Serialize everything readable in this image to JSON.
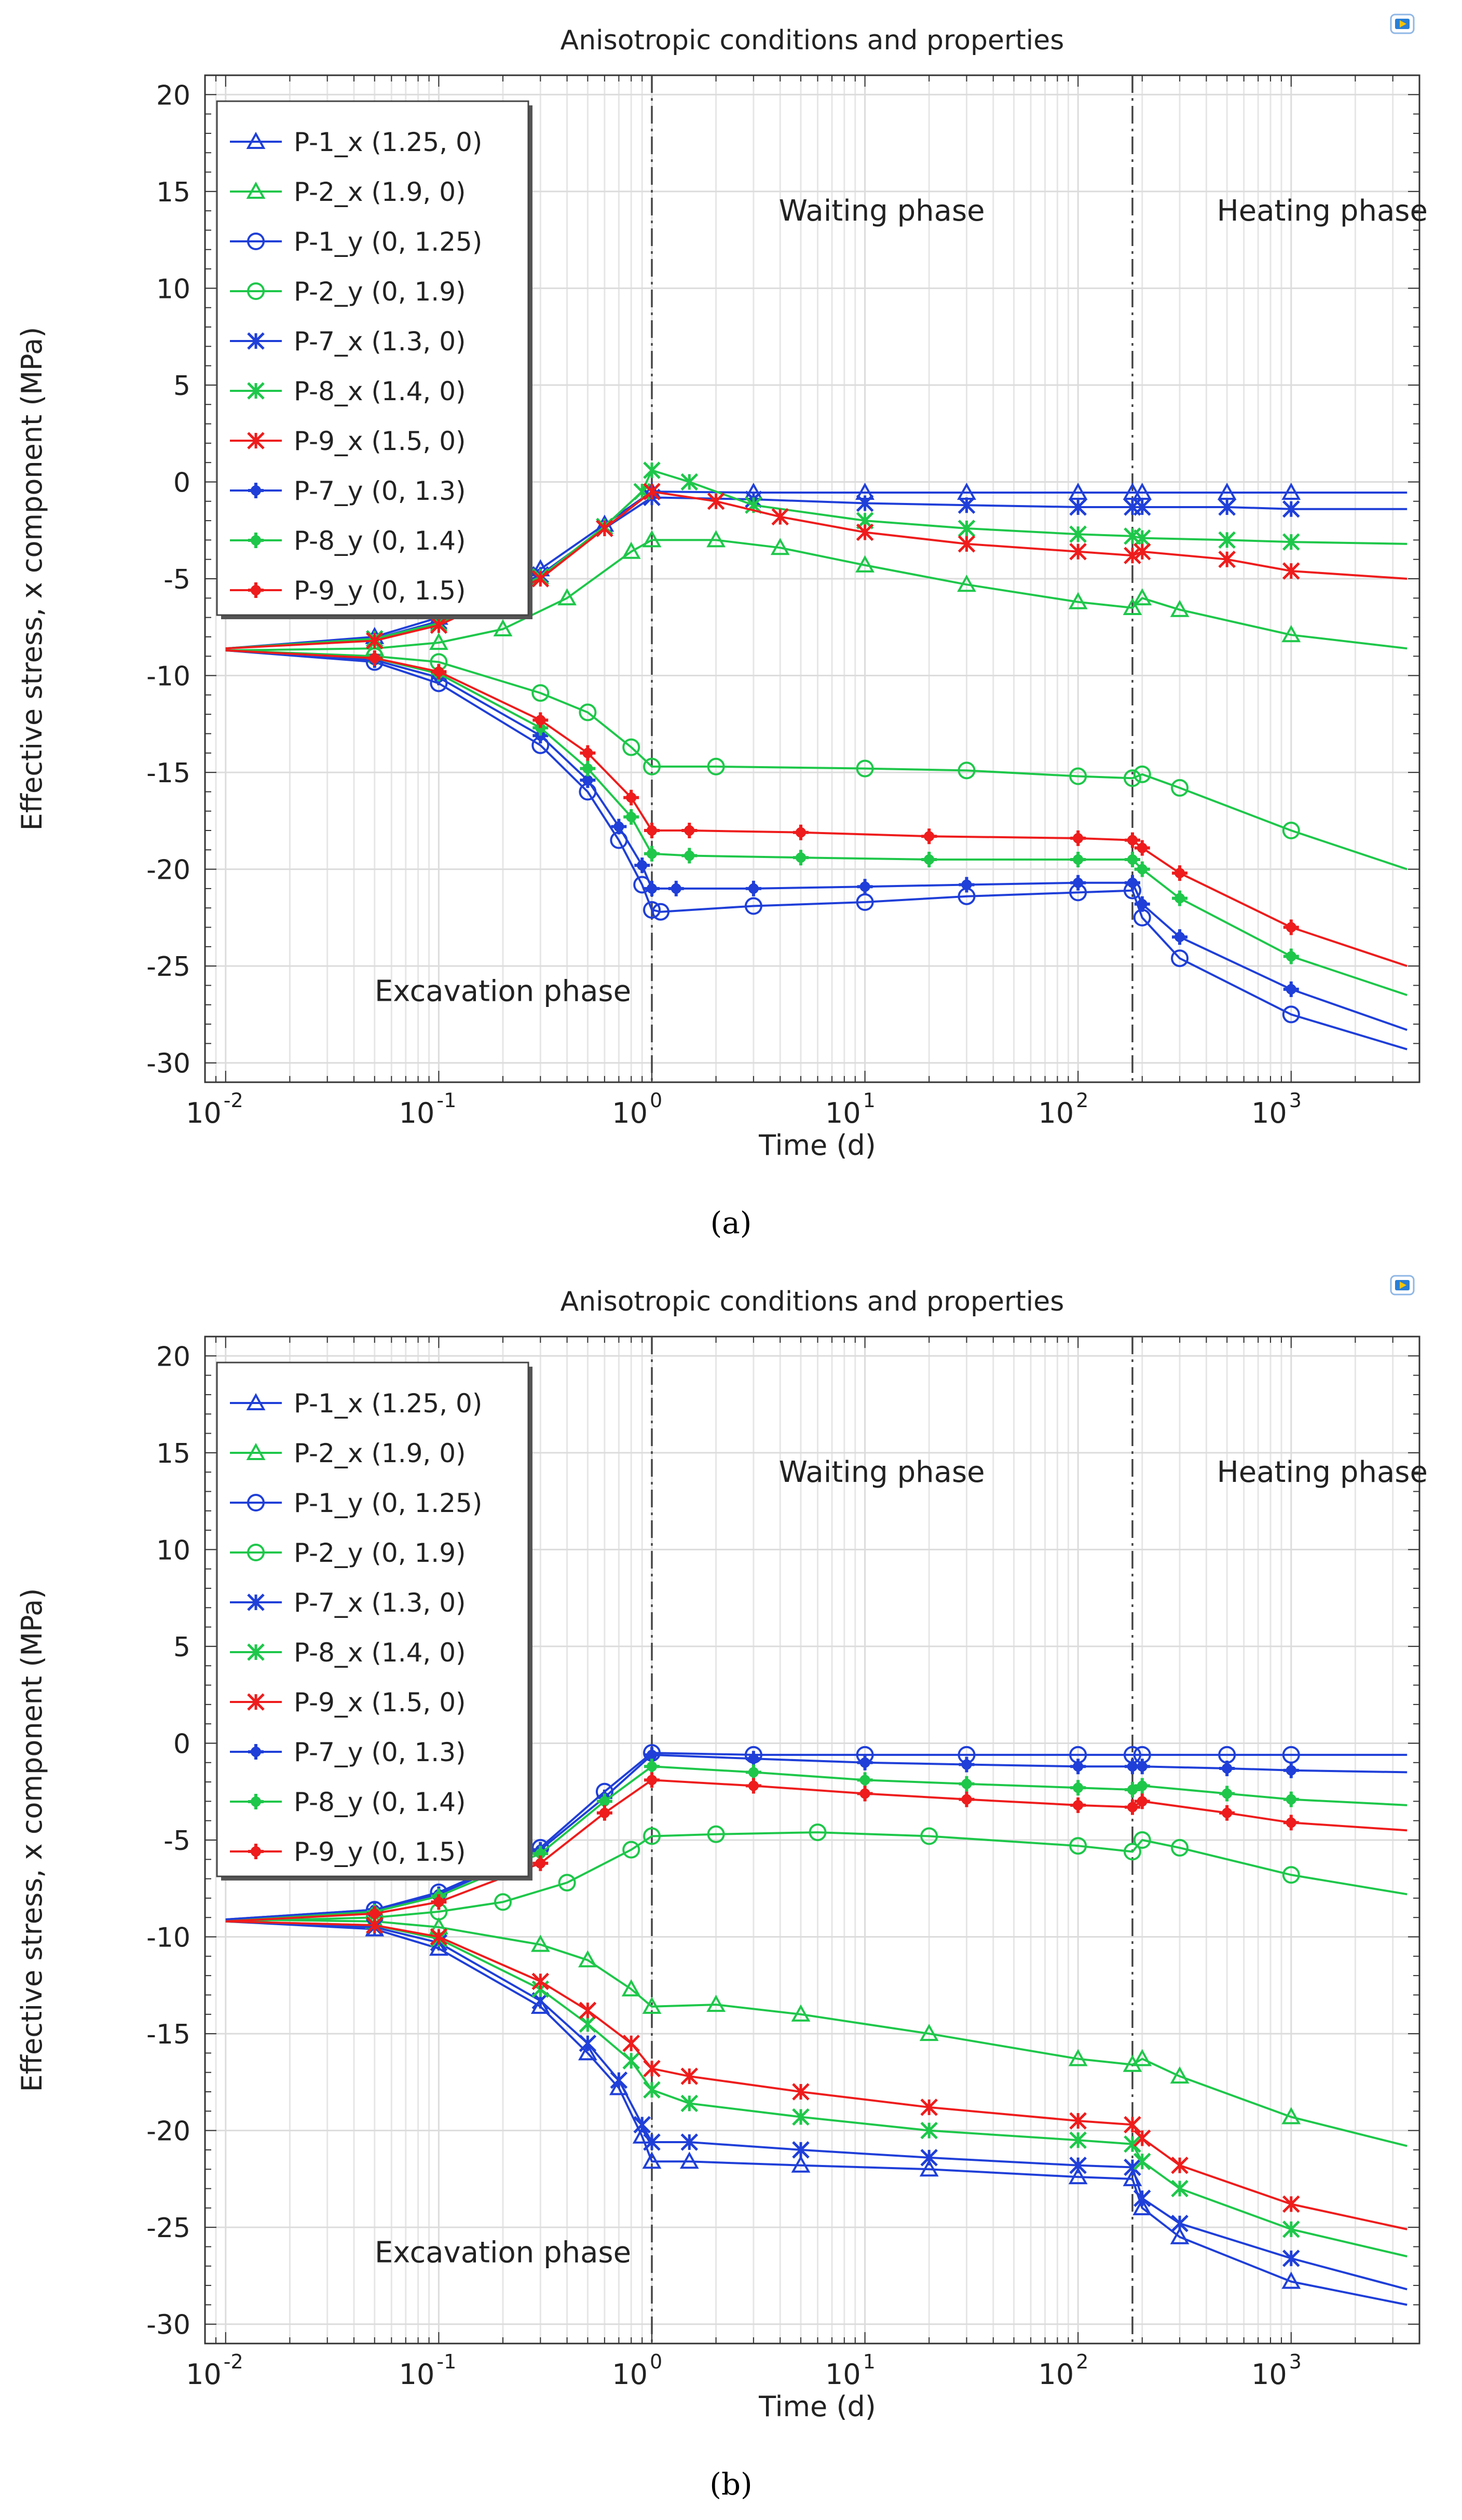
{
  "colors": {
    "blue": "#1f3fd8",
    "green": "#1ec74a",
    "red": "#ee1c1c",
    "grid": "#e6e6e6",
    "phase_line": "#444444",
    "icon": "#2a7fd4"
  },
  "chart_data": [
    {
      "id": "a",
      "type": "line",
      "panel_label": "(a)",
      "title": "Anisotropic conditions and properties",
      "xlabel": "Time (d)",
      "ylabel": "Effective stress, x component (MPa)",
      "xscale": "log",
      "xlim": [
        0.008,
        4000
      ],
      "ylim": [
        -31,
        21
      ],
      "yticks": [
        20,
        15,
        10,
        5,
        0,
        -5,
        -10,
        -15,
        -20,
        -25,
        -30
      ],
      "xticks": [
        {
          "value": 0.01,
          "base": "10",
          "exp": "-2"
        },
        {
          "value": 0.1,
          "base": "10",
          "exp": "-1"
        },
        {
          "value": 1,
          "base": "10",
          "exp": "0"
        },
        {
          "value": 10,
          "base": "10",
          "exp": "1"
        },
        {
          "value": 100,
          "base": "10",
          "exp": "2"
        },
        {
          "value": 1000,
          "base": "10",
          "exp": "3"
        }
      ],
      "phase_lines": [
        1,
        180
      ],
      "annotations": [
        {
          "text": "Waiting phase",
          "x": 12,
          "y": 13.5
        },
        {
          "text": "Heating phase",
          "x": 1400,
          "y": 13.5
        },
        {
          "text": "Excavation phase",
          "x": 0.2,
          "y": -26.8
        }
      ],
      "legend_position": "top-left",
      "series": [
        {
          "name": "P-1_x (1.25, 0)",
          "color": "blue",
          "marker": "triangle",
          "x": [
            0.01,
            0.05,
            0.1,
            0.3,
            0.6,
            1.0,
            3,
            10,
            30,
            100,
            180,
            200,
            500,
            1000,
            3500
          ],
          "y": [
            -8.6,
            -8.0,
            -7.0,
            -4.5,
            -2.2,
            -0.5,
            -0.55,
            -0.55,
            -0.55,
            -0.55,
            -0.55,
            -0.55,
            -0.55,
            -0.55,
            -0.55
          ]
        },
        {
          "name": "P-2_x (1.9, 0)",
          "color": "green",
          "marker": "triangle",
          "x": [
            0.01,
            0.05,
            0.1,
            0.2,
            0.4,
            0.8,
            1.0,
            2,
            4,
            10,
            30,
            100,
            180,
            200,
            300,
            1000,
            3500
          ],
          "y": [
            -8.7,
            -8.6,
            -8.3,
            -7.6,
            -6.0,
            -3.6,
            -3.0,
            -3.0,
            -3.4,
            -4.3,
            -5.3,
            -6.2,
            -6.5,
            -6.0,
            -6.6,
            -7.9,
            -8.6
          ]
        },
        {
          "name": "P-1_y (0, 1.25)",
          "color": "blue",
          "marker": "circle",
          "x": [
            0.01,
            0.05,
            0.1,
            0.3,
            0.5,
            0.7,
            0.9,
            1.0,
            1.1,
            3,
            10,
            30,
            100,
            180,
            200,
            300,
            1000,
            3500
          ],
          "y": [
            -8.7,
            -9.3,
            -10.4,
            -13.6,
            -16.0,
            -18.5,
            -20.8,
            -22.1,
            -22.2,
            -21.9,
            -21.7,
            -21.4,
            -21.2,
            -21.1,
            -22.5,
            -24.6,
            -27.5,
            -29.3
          ]
        },
        {
          "name": "P-2_y (0, 1.9)",
          "color": "green",
          "marker": "circle",
          "x": [
            0.01,
            0.05,
            0.1,
            0.3,
            0.5,
            0.8,
            1.0,
            2,
            10,
            30,
            100,
            180,
            200,
            300,
            1000,
            3500
          ],
          "y": [
            -8.7,
            -9.0,
            -9.3,
            -10.9,
            -11.9,
            -13.7,
            -14.7,
            -14.7,
            -14.8,
            -14.9,
            -15.2,
            -15.3,
            -15.1,
            -15.8,
            -18.0,
            -20.0
          ]
        },
        {
          "name": "P-7_x (1.3, 0)",
          "color": "blue",
          "marker": "x",
          "x": [
            0.01,
            0.05,
            0.1,
            0.3,
            0.6,
            1.0,
            3,
            10,
            30,
            100,
            180,
            200,
            500,
            1000,
            3500
          ],
          "y": [
            -8.6,
            -8.1,
            -7.2,
            -4.8,
            -2.4,
            -0.8,
            -0.9,
            -1.1,
            -1.2,
            -1.3,
            -1.3,
            -1.3,
            -1.3,
            -1.4,
            -1.4
          ]
        },
        {
          "name": "P-8_x (1.4, 0)",
          "color": "green",
          "marker": "x",
          "x": [
            0.01,
            0.05,
            0.1,
            0.3,
            0.6,
            0.9,
            1.0,
            1.5,
            3,
            10,
            30,
            100,
            180,
            200,
            500,
            1000,
            3500
          ],
          "y": [
            -8.6,
            -8.1,
            -7.3,
            -4.9,
            -2.3,
            -0.5,
            0.6,
            0.0,
            -1.2,
            -2.0,
            -2.4,
            -2.7,
            -2.8,
            -2.9,
            -3.0,
            -3.1,
            -3.2
          ]
        },
        {
          "name": "P-9_x (1.5, 0)",
          "color": "red",
          "marker": "x",
          "x": [
            0.01,
            0.05,
            0.1,
            0.3,
            0.6,
            1.0,
            2,
            4,
            10,
            30,
            100,
            180,
            200,
            500,
            1000,
            3500
          ],
          "y": [
            -8.6,
            -8.2,
            -7.4,
            -5.0,
            -2.4,
            -0.5,
            -1.0,
            -1.8,
            -2.6,
            -3.2,
            -3.6,
            -3.8,
            -3.6,
            -4.0,
            -4.6,
            -5.0
          ]
        },
        {
          "name": "P-7_y (0, 1.3)",
          "color": "blue",
          "marker": "plus",
          "x": [
            0.01,
            0.05,
            0.1,
            0.3,
            0.5,
            0.7,
            0.9,
            1.0,
            1.3,
            3,
            10,
            30,
            100,
            180,
            200,
            300,
            1000,
            3500
          ],
          "y": [
            -8.7,
            -9.2,
            -10.1,
            -13.1,
            -15.4,
            -17.8,
            -19.8,
            -21.0,
            -21.0,
            -21.0,
            -20.9,
            -20.8,
            -20.7,
            -20.7,
            -21.8,
            -23.5,
            -26.2,
            -28.3
          ]
        },
        {
          "name": "P-8_y (0, 1.4)",
          "color": "green",
          "marker": "plus",
          "x": [
            0.01,
            0.05,
            0.1,
            0.3,
            0.5,
            0.8,
            1.0,
            1.5,
            5,
            20,
            100,
            180,
            200,
            300,
            1000,
            3500
          ],
          "y": [
            -8.7,
            -9.1,
            -9.9,
            -12.7,
            -14.8,
            -17.3,
            -19.2,
            -19.3,
            -19.4,
            -19.5,
            -19.5,
            -19.5,
            -20.0,
            -21.5,
            -24.5,
            -26.5
          ]
        },
        {
          "name": "P-9_y (0, 1.5)",
          "color": "red",
          "marker": "plus",
          "x": [
            0.01,
            0.05,
            0.1,
            0.3,
            0.5,
            0.8,
            1.0,
            1.5,
            5,
            20,
            100,
            180,
            200,
            300,
            1000,
            3500
          ],
          "y": [
            -8.7,
            -9.1,
            -9.8,
            -12.3,
            -14.0,
            -16.3,
            -18.0,
            -18.0,
            -18.1,
            -18.3,
            -18.4,
            -18.5,
            -18.9,
            -20.2,
            -23.0,
            -25.0
          ]
        }
      ]
    },
    {
      "id": "b",
      "type": "line",
      "panel_label": "(b)",
      "title": "Anisotropic conditions and properties",
      "xlabel": "Time (d)",
      "ylabel": "Effective stress, x component (MPa)",
      "xscale": "log",
      "xlim": [
        0.008,
        4000
      ],
      "ylim": [
        -31,
        21
      ],
      "yticks": [
        20,
        15,
        10,
        5,
        0,
        -5,
        -10,
        -15,
        -20,
        -25,
        -30
      ],
      "xticks": [
        {
          "value": 0.01,
          "base": "10",
          "exp": "-2"
        },
        {
          "value": 0.1,
          "base": "10",
          "exp": "-1"
        },
        {
          "value": 1,
          "base": "10",
          "exp": "0"
        },
        {
          "value": 10,
          "base": "10",
          "exp": "1"
        },
        {
          "value": 100,
          "base": "10",
          "exp": "2"
        },
        {
          "value": 1000,
          "base": "10",
          "exp": "3"
        }
      ],
      "phase_lines": [
        1,
        180
      ],
      "annotations": [
        {
          "text": "Waiting phase",
          "x": 12,
          "y": 13.5
        },
        {
          "text": "Heating phase",
          "x": 1400,
          "y": 13.5
        },
        {
          "text": "Excavation phase",
          "x": 0.2,
          "y": -26.8
        }
      ],
      "legend_position": "top-left",
      "series": [
        {
          "name": "P-1_x (1.25, 0)",
          "color": "blue",
          "marker": "triangle",
          "x": [
            0.01,
            0.05,
            0.1,
            0.3,
            0.5,
            0.7,
            0.9,
            1.0,
            1.5,
            5,
            20,
            100,
            180,
            200,
            300,
            1000,
            3500
          ],
          "y": [
            -9.2,
            -9.6,
            -10.6,
            -13.6,
            -16.0,
            -17.8,
            -20.3,
            -21.6,
            -21.6,
            -21.8,
            -22.0,
            -22.4,
            -22.5,
            -24.0,
            -25.5,
            -27.8,
            -29.0
          ]
        },
        {
          "name": "P-2_x (1.9, 0)",
          "color": "green",
          "marker": "triangle",
          "x": [
            0.01,
            0.05,
            0.1,
            0.3,
            0.5,
            0.8,
            1.0,
            2,
            5,
            20,
            100,
            180,
            200,
            300,
            1000,
            3500
          ],
          "y": [
            -9.1,
            -9.2,
            -9.5,
            -10.4,
            -11.2,
            -12.7,
            -13.6,
            -13.5,
            -14.0,
            -15.0,
            -16.3,
            -16.6,
            -16.3,
            -17.2,
            -19.3,
            -20.8
          ]
        },
        {
          "name": "P-1_y (0, 1.25)",
          "color": "blue",
          "marker": "circle",
          "x": [
            0.01,
            0.05,
            0.1,
            0.3,
            0.6,
            1.0,
            3,
            10,
            30,
            100,
            180,
            200,
            500,
            1000,
            3500
          ],
          "y": [
            -9.1,
            -8.6,
            -7.7,
            -5.4,
            -2.5,
            -0.5,
            -0.6,
            -0.6,
            -0.6,
            -0.6,
            -0.6,
            -0.6,
            -0.6,
            -0.6,
            -0.6
          ]
        },
        {
          "name": "P-2_y (0, 1.9)",
          "color": "green",
          "marker": "circle",
          "x": [
            0.01,
            0.05,
            0.1,
            0.2,
            0.4,
            0.8,
            1.0,
            2,
            6,
            20,
            100,
            180,
            200,
            300,
            1000,
            3500
          ],
          "y": [
            -9.2,
            -9.0,
            -8.7,
            -8.2,
            -7.2,
            -5.5,
            -4.8,
            -4.7,
            -4.6,
            -4.8,
            -5.3,
            -5.6,
            -5.0,
            -5.4,
            -6.8,
            -7.8
          ]
        },
        {
          "name": "P-7_x (1.3, 0)",
          "color": "blue",
          "marker": "x",
          "x": [
            0.01,
            0.05,
            0.1,
            0.3,
            0.5,
            0.7,
            0.9,
            1.0,
            1.5,
            5,
            20,
            100,
            180,
            200,
            300,
            1000,
            3500
          ],
          "y": [
            -9.2,
            -9.5,
            -10.3,
            -13.3,
            -15.5,
            -17.4,
            -19.7,
            -20.6,
            -20.6,
            -21.0,
            -21.4,
            -21.8,
            -21.9,
            -23.5,
            -24.8,
            -26.6,
            -28.2
          ]
        },
        {
          "name": "P-8_x (1.4, 0)",
          "color": "green",
          "marker": "x",
          "x": [
            0.01,
            0.05,
            0.1,
            0.3,
            0.5,
            0.8,
            1.0,
            1.5,
            5,
            20,
            100,
            180,
            200,
            300,
            1000,
            3500
          ],
          "y": [
            -9.2,
            -9.4,
            -10.1,
            -12.7,
            -14.5,
            -16.4,
            -17.9,
            -18.6,
            -19.3,
            -20.0,
            -20.5,
            -20.7,
            -21.6,
            -23.0,
            -25.1,
            -26.5
          ]
        },
        {
          "name": "P-9_x (1.5, 0)",
          "color": "red",
          "marker": "x",
          "x": [
            0.01,
            0.05,
            0.1,
            0.3,
            0.5,
            0.8,
            1.0,
            1.5,
            5,
            20,
            100,
            180,
            200,
            300,
            1000,
            3500
          ],
          "y": [
            -9.2,
            -9.4,
            -10.0,
            -12.3,
            -13.8,
            -15.5,
            -16.8,
            -17.2,
            -18.0,
            -18.8,
            -19.5,
            -19.7,
            -20.4,
            -21.8,
            -23.8,
            -25.1
          ]
        },
        {
          "name": "P-7_y (0, 1.3)",
          "color": "blue",
          "marker": "plus",
          "x": [
            0.01,
            0.05,
            0.1,
            0.3,
            0.6,
            1.0,
            3,
            10,
            30,
            100,
            180,
            200,
            500,
            1000,
            3500
          ],
          "y": [
            -9.1,
            -8.6,
            -7.8,
            -5.5,
            -2.8,
            -0.6,
            -0.8,
            -1.0,
            -1.1,
            -1.2,
            -1.2,
            -1.2,
            -1.3,
            -1.4,
            -1.5
          ]
        },
        {
          "name": "P-8_y (0, 1.4)",
          "color": "green",
          "marker": "plus",
          "x": [
            0.01,
            0.05,
            0.1,
            0.3,
            0.6,
            1.0,
            3,
            10,
            30,
            100,
            180,
            200,
            500,
            1000,
            3500
          ],
          "y": [
            -9.2,
            -8.7,
            -7.9,
            -5.7,
            -3.0,
            -1.2,
            -1.5,
            -1.9,
            -2.1,
            -2.3,
            -2.4,
            -2.2,
            -2.6,
            -2.9,
            -3.2
          ]
        },
        {
          "name": "P-9_y (0, 1.5)",
          "color": "red",
          "marker": "plus",
          "x": [
            0.01,
            0.05,
            0.1,
            0.3,
            0.6,
            1.0,
            3,
            10,
            30,
            100,
            180,
            200,
            500,
            1000,
            3500
          ],
          "y": [
            -9.2,
            -8.8,
            -8.2,
            -6.2,
            -3.6,
            -1.9,
            -2.2,
            -2.6,
            -2.9,
            -3.2,
            -3.3,
            -3.0,
            -3.6,
            -4.1,
            -4.5
          ]
        }
      ]
    }
  ]
}
